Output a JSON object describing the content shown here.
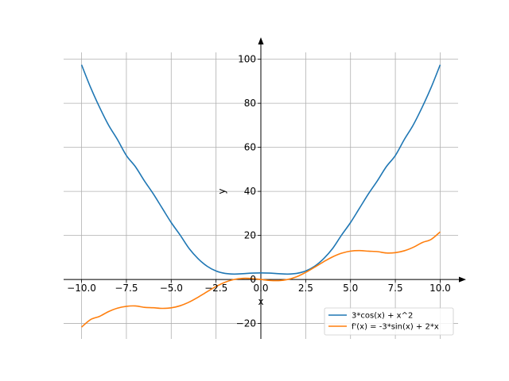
{
  "chart_data": {
    "type": "line",
    "title": "",
    "xlabel": "x",
    "ylabel": "y",
    "xlim": [
      -11.0,
      11.0
    ],
    "ylim": [
      -27.0,
      106.0
    ],
    "x_ticks": [
      -10.0,
      -7.5,
      -5.0,
      -2.5,
      0.0,
      2.5,
      5.0,
      7.5,
      10.0
    ],
    "x_tick_labels": [
      "−10.0",
      "−7.5",
      "−5.0",
      "−2.5",
      "0.0",
      "2.5",
      "5.0",
      "7.5",
      "10.0"
    ],
    "y_ticks": [
      -20,
      0,
      20,
      40,
      60,
      80,
      100
    ],
    "y_tick_labels": [
      "−20",
      "0",
      "20",
      "40",
      "60",
      "80",
      "100"
    ],
    "grid": true,
    "legend_position": "bottom-right",
    "series": [
      {
        "name": "3*cos(x) + x^2",
        "color": "#1f77b4",
        "x": [
          -10.0,
          -9.5,
          -9.0,
          -8.5,
          -8.0,
          -7.5,
          -7.0,
          -6.5,
          -6.0,
          -5.5,
          -5.0,
          -4.5,
          -4.0,
          -3.5,
          -3.0,
          -2.5,
          -2.0,
          -1.5,
          -1.0,
          -0.5,
          0.0,
          0.5,
          1.0,
          1.5,
          2.0,
          2.5,
          3.0,
          3.5,
          4.0,
          4.5,
          5.0,
          5.5,
          6.0,
          6.5,
          7.0,
          7.5,
          8.0,
          8.5,
          9.0,
          9.5,
          10.0
        ],
        "y": [
          97.48,
          87.26,
          78.27,
          70.19,
          63.56,
          56.29,
          51.26,
          44.85,
          38.88,
          32.35,
          25.85,
          20.14,
          14.04,
          9.44,
          6.03,
          3.85,
          2.75,
          2.46,
          2.62,
          2.88,
          3.0,
          2.88,
          2.62,
          2.46,
          2.75,
          3.85,
          6.03,
          9.44,
          14.04,
          20.14,
          25.85,
          32.35,
          38.88,
          44.85,
          51.26,
          56.29,
          63.56,
          70.19,
          78.27,
          87.26,
          97.48
        ]
      },
      {
        "name": "f'(x) = -3*sin(x) + 2*x",
        "color": "#ff7f0e",
        "x": [
          -10.0,
          -9.5,
          -9.0,
          -8.5,
          -8.0,
          -7.5,
          -7.0,
          -6.5,
          -6.0,
          -5.5,
          -5.0,
          -4.5,
          -4.0,
          -3.5,
          -3.0,
          -2.5,
          -2.0,
          -1.5,
          -1.0,
          -0.5,
          0.0,
          0.5,
          1.0,
          1.5,
          2.0,
          2.5,
          3.0,
          3.5,
          4.0,
          4.5,
          5.0,
          5.5,
          6.0,
          6.5,
          7.0,
          7.5,
          8.0,
          8.5,
          9.0,
          9.5,
          10.0
        ],
        "y": [
          -21.63,
          -18.23,
          -16.76,
          -14.61,
          -13.03,
          -12.19,
          -12.03,
          -12.65,
          -12.84,
          -13.12,
          -12.88,
          -11.93,
          -10.27,
          -8.05,
          -5.58,
          -3.2,
          -1.27,
          -0.01,
          0.52,
          0.44,
          0.0,
          -0.44,
          -0.52,
          0.01,
          1.27,
          3.2,
          5.58,
          8.05,
          10.27,
          11.93,
          12.88,
          13.12,
          12.84,
          12.65,
          12.03,
          12.19,
          13.03,
          14.61,
          16.76,
          18.23,
          21.63
        ]
      }
    ]
  }
}
